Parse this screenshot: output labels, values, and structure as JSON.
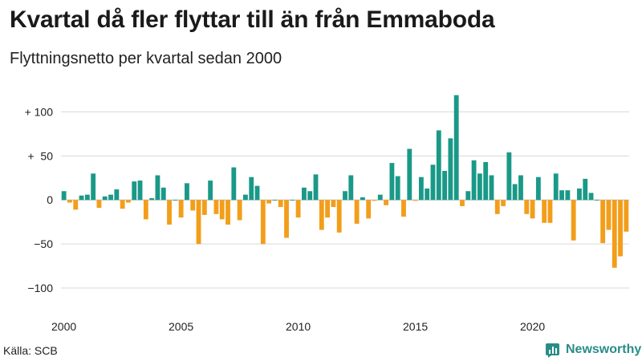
{
  "header": {
    "title": "Kvartal då fler flyttar till än från Emmaboda",
    "subtitle": "Flyttningsnetto per kvartal sedan 2000"
  },
  "footer": {
    "source": "Källa: SCB",
    "brand": "Newsworthy"
  },
  "colors": {
    "positive": "#1a9988",
    "negative": "#f29e1a",
    "grid": "#d9d9d9"
  },
  "chart_data": {
    "type": "bar",
    "title": "Kvartal då fler flyttar till än från Emmaboda",
    "subtitle": "Flyttningsnetto per kvartal sedan 2000",
    "xlabel": "",
    "ylabel": "",
    "x_start": "2000 Q1",
    "x_ticks": [
      2000,
      2005,
      2010,
      2015,
      2020
    ],
    "y_ticks": [
      {
        "value": 100,
        "label": "+ 100"
      },
      {
        "value": 50,
        "label": "+  50"
      },
      {
        "value": 0,
        "label": "0"
      },
      {
        "value": -50,
        "label": "−50"
      },
      {
        "value": -100,
        "label": "−100"
      }
    ],
    "ylim": [
      -120,
      125
    ],
    "grid": true,
    "values": [
      10,
      -3,
      -11,
      5,
      6,
      30,
      -9,
      4,
      6,
      12,
      -10,
      -3,
      21,
      22,
      -22,
      2,
      28,
      14,
      -28,
      0,
      -20,
      19,
      -12,
      -50,
      -17,
      22,
      -16,
      -22,
      -28,
      37,
      -23,
      6,
      26,
      16,
      -50,
      -4,
      0,
      -8,
      -43,
      0,
      -20,
      14,
      10,
      29,
      -34,
      -20,
      -8,
      -37,
      10,
      28,
      -27,
      3,
      -21,
      -1,
      6,
      -6,
      42,
      27,
      -19,
      58,
      -1,
      26,
      13,
      40,
      79,
      33,
      70,
      119,
      -7,
      10,
      45,
      30,
      43,
      28,
      -16,
      -7,
      54,
      18,
      28,
      -16,
      -21,
      26,
      -26,
      -26,
      30,
      11,
      11,
      -46,
      13,
      24,
      8,
      0,
      -49,
      -34,
      -77,
      -64,
      -36
    ]
  }
}
